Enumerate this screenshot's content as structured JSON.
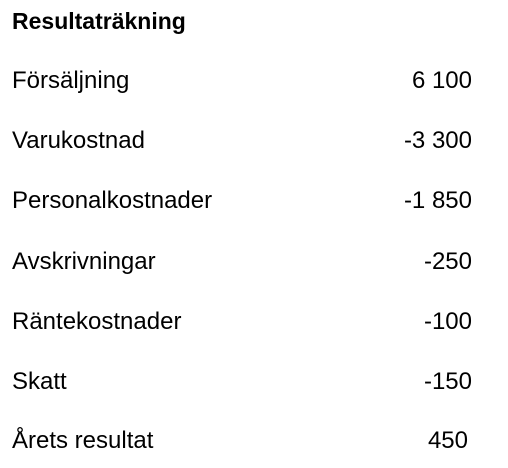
{
  "document": {
    "title": "Resultaträkning",
    "rows": [
      {
        "label": "Försäljning",
        "value": "6 100"
      },
      {
        "label": "Varukostnad",
        "value": "-3 300"
      },
      {
        "label": "Personalkostnader",
        "value": "-1 850"
      },
      {
        "label": "Avskrivningar",
        "value": "-250"
      },
      {
        "label": "Räntekostnader",
        "value": "-100"
      },
      {
        "label": "Skatt",
        "value": "-150"
      },
      {
        "label": "Årets resultat",
        "value": "450"
      }
    ]
  }
}
